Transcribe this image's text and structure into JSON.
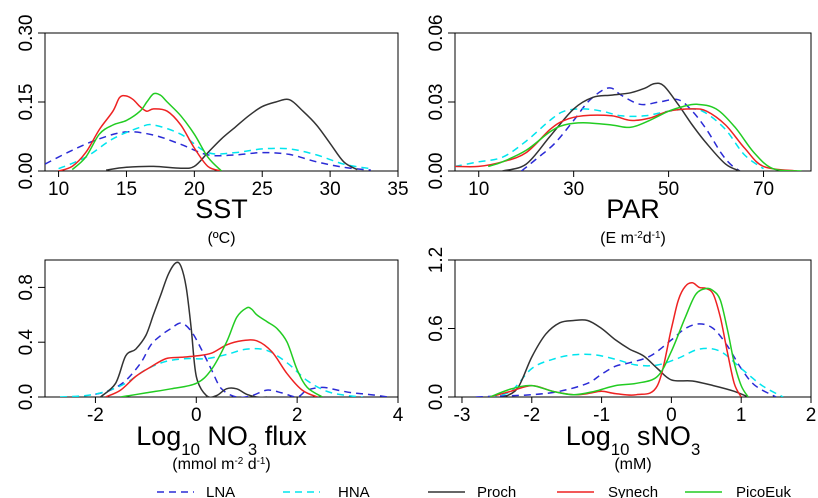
{
  "figure": {
    "series_styles": [
      {
        "name": "LNA",
        "color": "#2b2bd6",
        "dash": "7,5",
        "width": 1.5
      },
      {
        "name": "HNA",
        "color": "#00e5ee",
        "dash": "7,5",
        "width": 1.5
      },
      {
        "name": "Proch",
        "color": "#333333",
        "dash": "",
        "width": 1.5
      },
      {
        "name": "Synech",
        "color": "#ee2222",
        "dash": "",
        "width": 1.5
      },
      {
        "name": "PicoEuk",
        "color": "#22cc22",
        "dash": "",
        "width": 1.5
      }
    ],
    "legend_position": "bottom"
  },
  "chart_data": [
    {
      "type": "line",
      "xlabel": "SST",
      "xunit": "(ºC)",
      "xlim": [
        9,
        35
      ],
      "ylim": [
        0,
        0.3
      ],
      "xticks": [
        "10",
        "15",
        "20",
        "25",
        "30",
        "35"
      ],
      "xtick_values": [
        10,
        15,
        20,
        25,
        30,
        35
      ],
      "yticks": [
        "0.00",
        "0.15",
        "0.30"
      ],
      "ytick_values": [
        0,
        0.15,
        0.3
      ],
      "series": [
        {
          "name": "LNA",
          "x": [
            9,
            11,
            13,
            15,
            17,
            19,
            21,
            23,
            25,
            27,
            29,
            31,
            33
          ],
          "y": [
            0.015,
            0.045,
            0.07,
            0.085,
            0.078,
            0.058,
            0.035,
            0.035,
            0.04,
            0.036,
            0.02,
            0.008,
            0.002
          ]
        },
        {
          "name": "HNA",
          "x": [
            10,
            12,
            14,
            16,
            17,
            19,
            21,
            23,
            25,
            27,
            29,
            31,
            33
          ],
          "y": [
            0.005,
            0.03,
            0.07,
            0.095,
            0.1,
            0.08,
            0.04,
            0.04,
            0.048,
            0.048,
            0.035,
            0.015,
            0.005
          ]
        },
        {
          "name": "Proch",
          "x": [
            13.5,
            15,
            17,
            19,
            20,
            21,
            22,
            23,
            24,
            25,
            26,
            27,
            28,
            29,
            30,
            31,
            32
          ],
          "y": [
            0.002,
            0.008,
            0.01,
            0.006,
            0.01,
            0.04,
            0.07,
            0.095,
            0.12,
            0.14,
            0.15,
            0.155,
            0.13,
            0.1,
            0.06,
            0.02,
            0.003
          ]
        },
        {
          "name": "Synech",
          "x": [
            10,
            11,
            12,
            13,
            14,
            14.5,
            15,
            15.5,
            16,
            16.5,
            17,
            18,
            19,
            20,
            21,
            22
          ],
          "y": [
            0,
            0.01,
            0.04,
            0.09,
            0.13,
            0.16,
            0.163,
            0.155,
            0.14,
            0.13,
            0.135,
            0.13,
            0.1,
            0.05,
            0.01,
            0
          ]
        },
        {
          "name": "PicoEuk",
          "x": [
            11,
            12,
            13,
            14,
            15,
            16,
            16.5,
            17,
            17.5,
            18,
            19,
            20,
            21,
            22
          ],
          "y": [
            0.003,
            0.03,
            0.08,
            0.1,
            0.11,
            0.13,
            0.15,
            0.168,
            0.165,
            0.15,
            0.12,
            0.08,
            0.03,
            0
          ]
        }
      ]
    },
    {
      "type": "line",
      "xlabel": "PAR",
      "xunit": "(E m-2d-1)",
      "xlim": [
        5,
        80
      ],
      "ylim": [
        0,
        0.06
      ],
      "xticks": [
        "10",
        "30",
        "50",
        "70"
      ],
      "xtick_values": [
        10,
        30,
        50,
        70
      ],
      "yticks": [
        "0.00",
        "0.03",
        "0.06"
      ],
      "ytick_values": [
        0,
        0.03,
        0.06
      ],
      "series": [
        {
          "name": "LNA",
          "x": [
            19,
            22,
            26,
            30,
            33,
            36,
            38,
            40,
            44,
            48,
            52,
            55,
            58,
            61,
            63,
            65
          ],
          "y": [
            0,
            0.005,
            0.012,
            0.022,
            0.03,
            0.035,
            0.036,
            0.033,
            0.029,
            0.03,
            0.031,
            0.026,
            0.018,
            0.008,
            0.003,
            0
          ]
        },
        {
          "name": "HNA",
          "x": [
            5,
            10,
            15,
            20,
            25,
            28,
            32,
            36,
            40,
            45,
            50,
            55,
            58,
            62,
            66,
            70
          ],
          "y": [
            0.002,
            0.004,
            0.006,
            0.013,
            0.022,
            0.026,
            0.027,
            0.026,
            0.024,
            0.024,
            0.026,
            0.027,
            0.025,
            0.018,
            0.007,
            0.001
          ]
        },
        {
          "name": "Proch",
          "x": [
            15,
            20,
            25,
            30,
            34,
            38,
            42,
            45,
            47,
            49,
            52,
            55,
            58,
            62,
            65
          ],
          "y": [
            0,
            0.003,
            0.015,
            0.027,
            0.032,
            0.033,
            0.034,
            0.036,
            0.038,
            0.037,
            0.029,
            0.02,
            0.012,
            0.003,
            0
          ]
        },
        {
          "name": "Synech",
          "x": [
            5,
            10,
            15,
            20,
            25,
            28,
            32,
            38,
            42,
            46,
            50,
            55,
            58,
            62,
            66,
            70,
            77
          ],
          "y": [
            0.002,
            0.002,
            0.004,
            0.008,
            0.018,
            0.022,
            0.024,
            0.024,
            0.022,
            0.023,
            0.026,
            0.027,
            0.026,
            0.02,
            0.01,
            0.002,
            0
          ]
        },
        {
          "name": "PicoEuk",
          "x": [
            12,
            15,
            20,
            25,
            28,
            32,
            38,
            42,
            46,
            50,
            53,
            56,
            60,
            64,
            68,
            72,
            78
          ],
          "y": [
            0.002,
            0.004,
            0.009,
            0.017,
            0.02,
            0.021,
            0.02,
            0.019,
            0.022,
            0.026,
            0.028,
            0.029,
            0.027,
            0.019,
            0.008,
            0.001,
            0
          ]
        }
      ]
    },
    {
      "type": "line",
      "xlabel": "Log10 NO3 flux",
      "xunit": "(mmol m-2 d-1)",
      "xlim": [
        -3,
        4
      ],
      "ylim": [
        0,
        1.0
      ],
      "xticks": [
        "-2",
        "0",
        "2",
        "4"
      ],
      "xtick_values": [
        -2,
        0,
        2,
        4
      ],
      "yticks": [
        "0.0",
        "0.4",
        "0.8"
      ],
      "ytick_values": [
        0,
        0.4,
        0.8
      ],
      "series": [
        {
          "name": "LNA",
          "x": [
            -2,
            -1.7,
            -1.4,
            -1.1,
            -0.9,
            -0.7,
            -0.5,
            -0.3,
            -0.1,
            0.1,
            0.3,
            0.5,
            0.8,
            1.1,
            1.4,
            1.7,
            2,
            2.2,
            2.5,
            2.8,
            3.1,
            3.4,
            3.8
          ],
          "y": [
            0.02,
            0.05,
            0.12,
            0.25,
            0.38,
            0.45,
            0.5,
            0.54,
            0.48,
            0.35,
            0.2,
            0.06,
            0,
            0.01,
            0.05,
            0.03,
            0,
            0.05,
            0.07,
            0.05,
            0.03,
            0.02,
            0
          ]
        },
        {
          "name": "HNA",
          "x": [
            -2.7,
            -2.2,
            -1.8,
            -1.4,
            -1,
            -0.6,
            -0.2,
            0.2,
            0.6,
            1,
            1.4,
            1.8,
            2.2,
            2.6,
            3,
            3.3
          ],
          "y": [
            0,
            0.01,
            0.04,
            0.1,
            0.2,
            0.26,
            0.28,
            0.28,
            0.31,
            0.35,
            0.34,
            0.25,
            0.12,
            0.04,
            0.01,
            0
          ]
        },
        {
          "name": "Proch",
          "x": [
            -1.9,
            -1.6,
            -1.4,
            -1.2,
            -1,
            -0.85,
            -0.7,
            -0.55,
            -0.4,
            -0.3,
            -0.2,
            -0.1,
            0,
            0.2,
            0.4,
            0.6,
            0.8,
            1,
            1.2,
            1.4
          ],
          "y": [
            0,
            0.1,
            0.3,
            0.35,
            0.45,
            0.6,
            0.75,
            0.9,
            0.98,
            0.95,
            0.8,
            0.5,
            0.15,
            0.01,
            0.01,
            0.06,
            0.06,
            0.02,
            0,
            0
          ]
        },
        {
          "name": "Synech",
          "x": [
            -1.8,
            -1.5,
            -1.2,
            -0.9,
            -0.6,
            -0.3,
            0,
            0.3,
            0.6,
            0.9,
            1.2,
            1.5,
            1.8,
            2.1,
            2.4
          ],
          "y": [
            0,
            0.05,
            0.15,
            0.22,
            0.28,
            0.29,
            0.3,
            0.32,
            0.38,
            0.41,
            0.41,
            0.33,
            0.17,
            0.05,
            0
          ]
        },
        {
          "name": "PicoEuk",
          "x": [
            -1.5,
            -1,
            -0.5,
            0,
            0.3,
            0.6,
            0.8,
            1,
            1.1,
            1.2,
            1.4,
            1.6,
            1.8,
            2,
            2.2,
            2.5
          ],
          "y": [
            0,
            0.03,
            0.06,
            0.1,
            0.2,
            0.4,
            0.58,
            0.65,
            0.64,
            0.6,
            0.55,
            0.5,
            0.4,
            0.2,
            0.07,
            0
          ]
        }
      ]
    },
    {
      "type": "line",
      "xlabel": "Log10 sNO3",
      "xunit": "(mM)",
      "xlim": [
        -3.1,
        2
      ],
      "ylim": [
        0,
        1.2
      ],
      "xticks": [
        "-3",
        "-2",
        "-1",
        "0",
        "1",
        "2"
      ],
      "xtick_values": [
        -3,
        -2,
        -1,
        0,
        1,
        2
      ],
      "yticks": [
        "0.0",
        "0.6",
        "1.2"
      ],
      "ytick_values": [
        0,
        0.6,
        1.2
      ],
      "series": [
        {
          "name": "LNA",
          "x": [
            -2.8,
            -2.4,
            -2,
            -1.6,
            -1.2,
            -1,
            -0.8,
            -0.6,
            -0.3,
            0,
            0.2,
            0.4,
            0.6,
            0.8,
            1,
            1.2,
            1.5
          ],
          "y": [
            0,
            0.01,
            0.02,
            0.05,
            0.12,
            0.2,
            0.27,
            0.3,
            0.36,
            0.5,
            0.6,
            0.64,
            0.6,
            0.45,
            0.25,
            0.1,
            0
          ]
        },
        {
          "name": "HNA",
          "x": [
            -2.6,
            -2.3,
            -2,
            -1.7,
            -1.4,
            -1.1,
            -0.8,
            -0.5,
            -0.2,
            0.1,
            0.4,
            0.7,
            1,
            1.3,
            1.6
          ],
          "y": [
            0,
            0.05,
            0.25,
            0.33,
            0.37,
            0.37,
            0.33,
            0.28,
            0.28,
            0.34,
            0.42,
            0.4,
            0.25,
            0.1,
            0
          ]
        },
        {
          "name": "Proch",
          "x": [
            -2.4,
            -2.2,
            -2,
            -1.8,
            -1.6,
            -1.4,
            -1.2,
            -1,
            -0.8,
            -0.6,
            -0.4,
            -0.2,
            0,
            0.3,
            0.6,
            0.9,
            1.1
          ],
          "y": [
            0,
            0.08,
            0.35,
            0.55,
            0.65,
            0.67,
            0.67,
            0.6,
            0.5,
            0.42,
            0.36,
            0.25,
            0.15,
            0.14,
            0.1,
            0.05,
            0
          ]
        },
        {
          "name": "Synech",
          "x": [
            -2.6,
            -2.3,
            -2,
            -1.7,
            -1.4,
            -1.2,
            -1,
            -0.8,
            -0.5,
            -0.2,
            0,
            0.1,
            0.2,
            0.3,
            0.4,
            0.5,
            0.6,
            0.7,
            0.8,
            0.9,
            1
          ],
          "y": [
            0,
            0.05,
            0.1,
            0.05,
            0.02,
            0.03,
            0.05,
            0.03,
            0.02,
            0.1,
            0.6,
            0.85,
            0.97,
            1,
            0.96,
            0.95,
            0.9,
            0.7,
            0.4,
            0.12,
            0
          ]
        },
        {
          "name": "PicoEuk",
          "x": [
            -2.6,
            -2.3,
            -2,
            -1.7,
            -1.4,
            -1.1,
            -0.8,
            -0.5,
            -0.2,
            0,
            0.2,
            0.35,
            0.5,
            0.6,
            0.7,
            0.8,
            0.9,
            1,
            1.1
          ],
          "y": [
            0,
            0.07,
            0.1,
            0.05,
            0.02,
            0.05,
            0.1,
            0.12,
            0.18,
            0.4,
            0.7,
            0.9,
            0.95,
            0.93,
            0.85,
            0.6,
            0.3,
            0.1,
            0
          ]
        }
      ]
    }
  ]
}
